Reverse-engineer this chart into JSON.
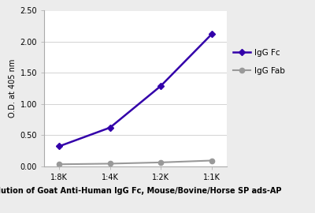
{
  "x_labels": [
    "1:8K",
    "1:4K",
    "1:2K",
    "1:1K"
  ],
  "x_values": [
    1,
    2,
    3,
    4
  ],
  "igg_fc_values": [
    0.32,
    0.62,
    1.29,
    2.12
  ],
  "igg_fab_values": [
    0.03,
    0.04,
    0.06,
    0.09
  ],
  "igg_fc_color": "#3300AA",
  "igg_fab_color": "#999999",
  "ylabel": "O.D. at 405 nm",
  "xlabel": "Dilution of Goat Anti-Human IgG Fc, Mouse/Bovine/Horse SP ads-AP",
  "ylim": [
    0.0,
    2.5
  ],
  "yticks": [
    0.0,
    0.5,
    1.0,
    1.5,
    2.0,
    2.5
  ],
  "legend_fc_label": "IgG Fc",
  "legend_fab_label": "IgG Fab",
  "background_color": "#ececec",
  "plot_bg_color": "#ffffff",
  "axis_fontsize": 7,
  "tick_fontsize": 7,
  "legend_fontsize": 7.5
}
